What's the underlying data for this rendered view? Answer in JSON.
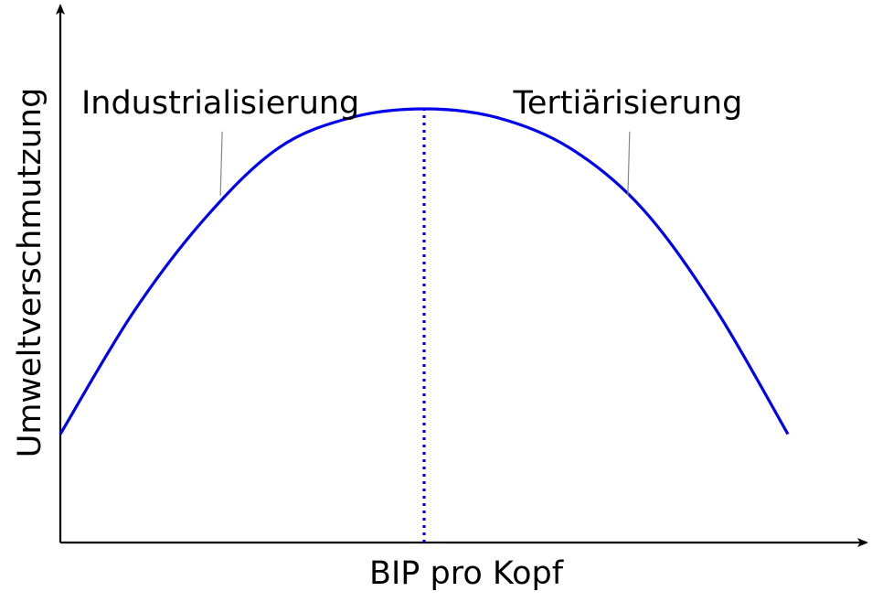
{
  "chart_data": {
    "type": "line",
    "title": "",
    "xlabel": "BIP pro Kopf",
    "ylabel": "Umweltverschmutzung",
    "xlim": [
      0,
      1
    ],
    "ylim": [
      0,
      1
    ],
    "grid": false,
    "legend": "none",
    "series": [
      {
        "color": "#0000ee",
        "style": "solid",
        "x": [
          0,
          0.1,
          0.2,
          0.3,
          0.4,
          0.5,
          0.6,
          0.7,
          0.8,
          0.9,
          1.0
        ],
        "y": [
          0.25,
          0.53,
          0.75,
          0.91,
          0.98,
          1.0,
          0.98,
          0.91,
          0.77,
          0.54,
          0.25
        ]
      }
    ],
    "peak_marker": {
      "x": 0.5,
      "color": "#0000ee",
      "style": "dotted"
    },
    "annotations": [
      {
        "text": "Industrialisierung",
        "x": 0.22,
        "y": 0.8
      },
      {
        "text": "Tertiärisierung",
        "x": 0.78,
        "y": 0.8
      }
    ]
  }
}
